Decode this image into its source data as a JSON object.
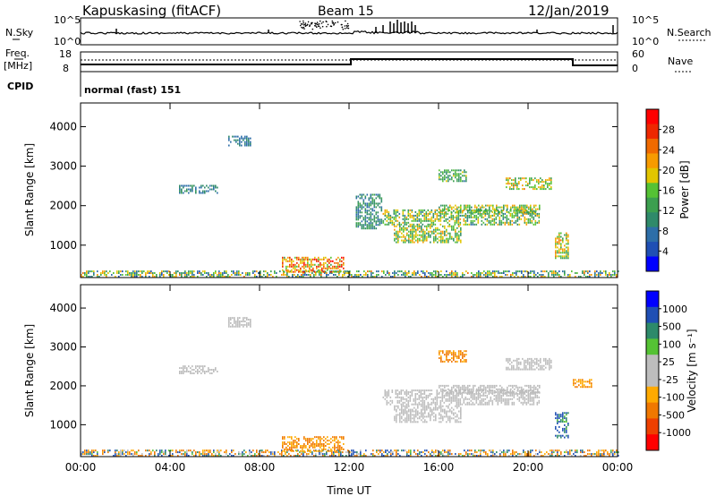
{
  "header": {
    "station": "Kapuskasing (fitACF)",
    "beam": "Beam 15",
    "date": "12/Jan/2019"
  },
  "aux_panels": {
    "nsky_label": "N.Sky",
    "nsky_ticks": [
      "10^5",
      "10^0"
    ],
    "nsearch_label": "N.Search",
    "nsearch_ticks": [
      "10^5",
      "10^0"
    ],
    "freq_label": "Freq.",
    "freq_unit": "[MHz]",
    "freq_ticks": [
      "18",
      "8"
    ],
    "nave_label": "Nave",
    "nave_ticks": [
      "60",
      "0"
    ],
    "cpid_label": "CPID",
    "cpid_value": "normal (fast) 151"
  },
  "colors": {
    "power_scale": [
      "#0000ff",
      "#1f4fb4",
      "#2d6ea8",
      "#2f8a6a",
      "#3c9f4f",
      "#55c234",
      "#e2c500",
      "#f79b00",
      "#f06a00",
      "#ee2800",
      "#ff0000"
    ],
    "velocity_scale": [
      "#0000ff",
      "#1f4fb4",
      "#2d8a6a",
      "#55c234",
      "#bdbdbd",
      "#bdbdbd",
      "#ffaa00",
      "#f07800",
      "#ee4000",
      "#ff0000"
    ]
  },
  "chart_data": [
    {
      "type": "heatmap",
      "name": "power",
      "ylabel": "Slant Range [km]",
      "x_ticks": [
        "00:00",
        "04:00",
        "08:00",
        "12:00",
        "16:00",
        "20:00",
        "00:00"
      ],
      "y_ticks": [
        "1000",
        "2000",
        "3000",
        "4000"
      ],
      "ylim": [
        180,
        4600
      ],
      "colorbar_label": "Power [dB]",
      "colorbar_ticks": [
        "4",
        "8",
        "12",
        "16",
        "20",
        "24",
        "28"
      ],
      "colorbar_range": [
        0,
        32
      ],
      "regions": [
        {
          "t": [
            0.0,
            24.0
          ],
          "r": [
            180,
            320
          ],
          "v": [
            4,
            24
          ]
        },
        {
          "t": [
            9.0,
            11.8
          ],
          "r": [
            300,
            700
          ],
          "v": [
            14,
            30
          ]
        },
        {
          "t": [
            6.6,
            7.6
          ],
          "r": [
            3500,
            3750
          ],
          "v": [
            6,
            10
          ]
        },
        {
          "t": [
            4.4,
            6.1
          ],
          "r": [
            2300,
            2500
          ],
          "v": [
            6,
            12
          ]
        },
        {
          "t": [
            13.5,
            20.5
          ],
          "r": [
            1500,
            1900
          ],
          "v": [
            8,
            22
          ]
        },
        {
          "t": [
            16.0,
            20.5
          ],
          "r": [
            1800,
            2000
          ],
          "v": [
            10,
            22
          ]
        },
        {
          "t": [
            14.0,
            17.0
          ],
          "r": [
            1050,
            1500
          ],
          "v": [
            10,
            22
          ]
        },
        {
          "t": [
            19.0,
            21.0
          ],
          "r": [
            2400,
            2700
          ],
          "v": [
            12,
            24
          ]
        },
        {
          "t": [
            16.0,
            17.2
          ],
          "r": [
            2600,
            2900
          ],
          "v": [
            8,
            18
          ]
        },
        {
          "t": [
            21.2,
            21.8
          ],
          "r": [
            650,
            1300
          ],
          "v": [
            12,
            24
          ]
        },
        {
          "t": [
            12.3,
            13.5
          ],
          "r": [
            1400,
            2300
          ],
          "v": [
            6,
            14
          ]
        }
      ]
    },
    {
      "type": "heatmap",
      "name": "velocity",
      "xlabel": "Time UT",
      "ylabel": "Slant Range [km]",
      "x_ticks": [
        "00:00",
        "04:00",
        "08:00",
        "12:00",
        "16:00",
        "20:00",
        "00:00"
      ],
      "y_ticks": [
        "1000",
        "2000",
        "3000",
        "4000"
      ],
      "ylim": [
        180,
        4600
      ],
      "colorbar_label": "Velocity [m s⁻¹]",
      "colorbar_ticks": [
        "1000",
        "500",
        "100",
        "25",
        "-25",
        "-100",
        "-500",
        "-1000"
      ],
      "regions": [
        {
          "t": [
            0.0,
            24.0
          ],
          "r": [
            180,
            320
          ],
          "v": [
            -200,
            200
          ]
        },
        {
          "t": [
            9.0,
            11.8
          ],
          "r": [
            300,
            700
          ],
          "v": [
            -150,
            -50
          ]
        },
        {
          "t": [
            6.6,
            7.6
          ],
          "r": [
            3500,
            3750
          ],
          "v": [
            -20,
            20
          ]
        },
        {
          "t": [
            4.4,
            6.1
          ],
          "r": [
            2300,
            2500
          ],
          "v": [
            -20,
            20
          ]
        },
        {
          "t": [
            13.5,
            20.5
          ],
          "r": [
            1500,
            1900
          ],
          "v": [
            -20,
            20
          ]
        },
        {
          "t": [
            16.0,
            20.5
          ],
          "r": [
            1800,
            2000
          ],
          "v": [
            -20,
            20
          ]
        },
        {
          "t": [
            14.0,
            17.0
          ],
          "r": [
            1050,
            1500
          ],
          "v": [
            -20,
            20
          ]
        },
        {
          "t": [
            19.0,
            21.0
          ],
          "r": [
            2400,
            2700
          ],
          "v": [
            -20,
            20
          ]
        },
        {
          "t": [
            16.0,
            17.2
          ],
          "r": [
            2600,
            2900
          ],
          "v": [
            -150,
            -60
          ]
        },
        {
          "t": [
            21.2,
            21.8
          ],
          "r": [
            650,
            1300
          ],
          "v": [
            40,
            150
          ]
        },
        {
          "t": [
            22.0,
            22.8
          ],
          "r": [
            1950,
            2150
          ],
          "v": [
            -150,
            -60
          ]
        }
      ]
    }
  ]
}
